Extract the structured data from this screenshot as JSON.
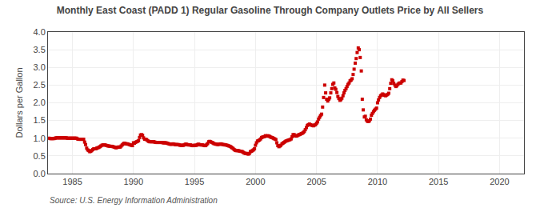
{
  "chart_data": {
    "type": "scatter",
    "title": "Monthly East Coast (PADD 1) Regular Gasoline Through Company Outlets Price by All Sellers",
    "ylabel": "Dollars per Gallon",
    "annotations": [
      "Source: U.S. Energy Information Administration"
    ],
    "color": "#CC0000",
    "marker": "square",
    "grid": true,
    "xlim": [
      1983,
      2022
    ],
    "ylim": [
      0.0,
      4.0
    ],
    "xticks": [
      1985,
      1990,
      1995,
      2000,
      2005,
      2010,
      2015,
      2020
    ],
    "yticks": [
      {
        "value": 0.0,
        "label": "0.0"
      },
      0.5,
      {
        "value": 1.0,
        "label": "1.0"
      },
      1.5,
      {
        "value": 2.0,
        "label": "2.0"
      },
      2.5,
      {
        "value": 3.0,
        "label": "3.0"
      },
      3.5,
      {
        "value": 4.0,
        "label": "4.0"
      }
    ],
    "x": [
      1983.08,
      1983.17,
      1983.25,
      1983.33,
      1983.42,
      1983.5,
      1983.58,
      1983.67,
      1983.75,
      1983.83,
      1983.92,
      1984.0,
      1984.08,
      1984.17,
      1984.25,
      1984.33,
      1984.42,
      1984.5,
      1984.58,
      1984.67,
      1984.75,
      1984.83,
      1984.92,
      1985.0,
      1985.08,
      1985.17,
      1985.25,
      1985.33,
      1985.42,
      1985.5,
      1985.58,
      1985.67,
      1985.75,
      1985.83,
      1985.92,
      1986.0,
      1986.08,
      1986.17,
      1986.25,
      1986.33,
      1986.42,
      1986.5,
      1986.58,
      1986.67,
      1986.75,
      1986.83,
      1986.92,
      1987.0,
      1987.08,
      1987.17,
      1987.25,
      1987.33,
      1987.42,
      1987.5,
      1987.58,
      1987.67,
      1987.75,
      1987.83,
      1987.92,
      1988.0,
      1988.08,
      1988.17,
      1988.25,
      1988.33,
      1988.42,
      1988.5,
      1988.58,
      1988.67,
      1988.75,
      1988.83,
      1988.92,
      1989.0,
      1989.08,
      1989.17,
      1989.25,
      1989.33,
      1989.42,
      1989.5,
      1989.58,
      1989.67,
      1989.75,
      1989.83,
      1989.92,
      1990.0,
      1990.08,
      1990.17,
      1990.25,
      1990.33,
      1990.42,
      1990.5,
      1990.58,
      1990.67,
      1990.75,
      1990.83,
      1990.92,
      1991.0,
      1991.08,
      1991.17,
      1991.25,
      1991.33,
      1991.42,
      1991.5,
      1991.58,
      1991.67,
      1991.75,
      1991.83,
      1991.92,
      1992.0,
      1992.08,
      1992.17,
      1992.25,
      1992.33,
      1992.42,
      1992.5,
      1992.58,
      1992.67,
      1992.75,
      1992.83,
      1992.92,
      1993.0,
      1993.08,
      1993.17,
      1993.25,
      1993.33,
      1993.42,
      1993.5,
      1993.58,
      1993.67,
      1993.75,
      1993.83,
      1993.92,
      1994.0,
      1994.08,
      1994.17,
      1994.25,
      1994.33,
      1994.42,
      1994.5,
      1994.58,
      1994.67,
      1994.75,
      1994.83,
      1994.92,
      1995.0,
      1995.08,
      1995.17,
      1995.25,
      1995.33,
      1995.42,
      1995.5,
      1995.58,
      1995.67,
      1995.75,
      1995.83,
      1995.92,
      1996.0,
      1996.08,
      1996.17,
      1996.25,
      1996.33,
      1996.42,
      1996.5,
      1996.58,
      1996.67,
      1996.75,
      1996.83,
      1996.92,
      1997.0,
      1997.08,
      1997.17,
      1997.25,
      1997.33,
      1997.42,
      1997.5,
      1997.58,
      1997.67,
      1997.75,
      1997.83,
      1997.92,
      1998.0,
      1998.08,
      1998.17,
      1998.25,
      1998.33,
      1998.42,
      1998.5,
      1998.58,
      1998.67,
      1998.75,
      1998.83,
      1998.92,
      1999.0,
      1999.08,
      1999.17,
      1999.25,
      1999.33,
      1999.42,
      1999.5,
      1999.58,
      1999.67,
      1999.75,
      1999.83,
      1999.92,
      2000.0,
      2000.08,
      2000.17,
      2000.25,
      2000.33,
      2000.42,
      2000.5,
      2000.58,
      2000.67,
      2000.75,
      2000.83,
      2000.92,
      2001.0,
      2001.08,
      2001.17,
      2001.25,
      2001.33,
      2001.42,
      2001.5,
      2001.58,
      2001.67,
      2001.75,
      2001.83,
      2001.92,
      2002.0,
      2002.08,
      2002.17,
      2002.25,
      2002.33,
      2002.42,
      2002.5,
      2002.58,
      2002.67,
      2002.75,
      2002.83,
      2002.92,
      2003.0,
      2003.08,
      2003.17,
      2003.25,
      2003.33,
      2003.42,
      2003.5,
      2003.58,
      2003.67,
      2003.75,
      2003.83,
      2003.92,
      2004.0,
      2004.08,
      2004.17,
      2004.25,
      2004.33,
      2004.42,
      2004.5,
      2004.58,
      2004.67,
      2004.75,
      2004.83,
      2004.92,
      2005.0,
      2005.08,
      2005.17,
      2005.25,
      2005.33,
      2005.42,
      2005.5,
      2005.58,
      2005.67,
      2005.75,
      2005.83,
      2005.92,
      2006.0,
      2006.08,
      2006.17,
      2006.25,
      2006.33,
      2006.42,
      2006.5,
      2006.58,
      2006.67,
      2006.75,
      2006.83,
      2006.92,
      2007.0,
      2007.08,
      2007.17,
      2007.25,
      2007.33,
      2007.42,
      2007.5,
      2007.58,
      2007.67,
      2007.75,
      2007.83,
      2007.92,
      2008.0,
      2008.08,
      2008.17,
      2008.25,
      2008.33,
      2008.42,
      2008.5,
      2008.58,
      2008.67,
      2008.75,
      2008.83,
      2008.92,
      2009.0,
      2009.08,
      2009.17,
      2009.25,
      2009.33,
      2009.42,
      2009.5,
      2009.58,
      2009.67,
      2009.75,
      2009.83,
      2009.92,
      2010.0,
      2010.08,
      2010.17,
      2010.25,
      2010.33,
      2010.42,
      2010.5,
      2010.58,
      2010.67,
      2010.75,
      2010.83,
      2010.92,
      2011.0,
      2011.08,
      2011.17,
      2011.25,
      2011.33,
      2011.42,
      2011.5,
      2011.58,
      2011.67,
      2011.75,
      2011.83,
      2011.92,
      2012.0,
      2012.08,
      2012.17
    ],
    "values": [
      1.0,
      0.99,
      0.99,
      0.99,
      0.99,
      0.99,
      1.0,
      1.01,
      1.01,
      1.01,
      1.01,
      1.01,
      1.01,
      1.01,
      1.01,
      1.01,
      1.01,
      1.01,
      1.0,
      1.0,
      1.0,
      1.0,
      1.0,
      1.0,
      1.0,
      1.0,
      1.0,
      1.0,
      0.98,
      0.97,
      0.97,
      0.97,
      0.97,
      0.97,
      0.97,
      0.89,
      0.82,
      0.72,
      0.67,
      0.65,
      0.62,
      0.63,
      0.65,
      0.68,
      0.7,
      0.7,
      0.7,
      0.72,
      0.73,
      0.74,
      0.76,
      0.78,
      0.8,
      0.81,
      0.81,
      0.81,
      0.8,
      0.79,
      0.78,
      0.78,
      0.77,
      0.77,
      0.77,
      0.76,
      0.75,
      0.74,
      0.73,
      0.74,
      0.75,
      0.75,
      0.75,
      0.78,
      0.81,
      0.84,
      0.86,
      0.85,
      0.84,
      0.84,
      0.83,
      0.82,
      0.81,
      0.8,
      0.79,
      0.87,
      0.86,
      0.88,
      0.9,
      0.91,
      0.93,
      1.02,
      1.09,
      1.1,
      1.08,
      1.01,
      0.97,
      0.97,
      0.96,
      0.93,
      0.91,
      0.9,
      0.9,
      0.9,
      0.9,
      0.9,
      0.89,
      0.88,
      0.88,
      0.88,
      0.88,
      0.88,
      0.88,
      0.88,
      0.87,
      0.87,
      0.87,
      0.87,
      0.86,
      0.85,
      0.84,
      0.83,
      0.83,
      0.83,
      0.84,
      0.83,
      0.82,
      0.82,
      0.82,
      0.82,
      0.81,
      0.8,
      0.8,
      0.8,
      0.8,
      0.81,
      0.83,
      0.83,
      0.82,
      0.81,
      0.81,
      0.81,
      0.8,
      0.79,
      0.79,
      0.8,
      0.8,
      0.8,
      0.82,
      0.83,
      0.82,
      0.81,
      0.81,
      0.81,
      0.8,
      0.79,
      0.79,
      0.82,
      0.85,
      0.9,
      0.91,
      0.9,
      0.88,
      0.87,
      0.85,
      0.84,
      0.83,
      0.83,
      0.82,
      0.83,
      0.83,
      0.84,
      0.83,
      0.82,
      0.82,
      0.81,
      0.81,
      0.8,
      0.79,
      0.78,
      0.77,
      0.75,
      0.73,
      0.71,
      0.68,
      0.66,
      0.65,
      0.65,
      0.65,
      0.64,
      0.63,
      0.63,
      0.62,
      0.6,
      0.58,
      0.57,
      0.57,
      0.56,
      0.55,
      0.57,
      0.62,
      0.63,
      0.65,
      0.67,
      0.7,
      0.8,
      0.87,
      0.92,
      0.93,
      0.95,
      0.98,
      1.02,
      1.03,
      1.04,
      1.05,
      1.07,
      1.06,
      1.07,
      1.06,
      1.05,
      1.03,
      1.02,
      1.01,
      0.99,
      0.98,
      0.96,
      0.87,
      0.79,
      0.76,
      0.78,
      0.8,
      0.84,
      0.86,
      0.88,
      0.9,
      0.92,
      0.93,
      0.94,
      0.95,
      0.96,
      0.98,
      1.04,
      1.1,
      1.1,
      1.07,
      1.06,
      1.07,
      1.09,
      1.1,
      1.11,
      1.13,
      1.14,
      1.16,
      1.19,
      1.24,
      1.3,
      1.36,
      1.38,
      1.4,
      1.38,
      1.37,
      1.36,
      1.35,
      1.37,
      1.38,
      1.42,
      1.46,
      1.54,
      1.59,
      1.64,
      1.68,
      1.88,
      2.15,
      2.5,
      2.28,
      2.1,
      2.05,
      2.1,
      2.14,
      2.28,
      2.4,
      2.52,
      2.56,
      2.42,
      2.38,
      2.29,
      2.18,
      2.12,
      2.07,
      2.09,
      2.13,
      2.2,
      2.28,
      2.35,
      2.4,
      2.46,
      2.52,
      2.56,
      2.62,
      2.64,
      2.68,
      2.8,
      2.95,
      3.12,
      3.25,
      3.42,
      3.55,
      3.5,
      3.28,
      2.9,
      2.1,
      1.8,
      1.6,
      1.62,
      1.52,
      1.48,
      1.47,
      1.49,
      1.54,
      1.65,
      1.7,
      1.75,
      1.79,
      1.82,
      1.85,
      2.0,
      2.08,
      2.15,
      2.2,
      2.22,
      2.25,
      2.23,
      2.21,
      2.2,
      2.22,
      2.24,
      2.27,
      2.4,
      2.55,
      2.65,
      2.62,
      2.55,
      2.5,
      2.46,
      2.48,
      2.52,
      2.55,
      2.56,
      2.56,
      2.6,
      2.64,
      2.63
    ]
  }
}
